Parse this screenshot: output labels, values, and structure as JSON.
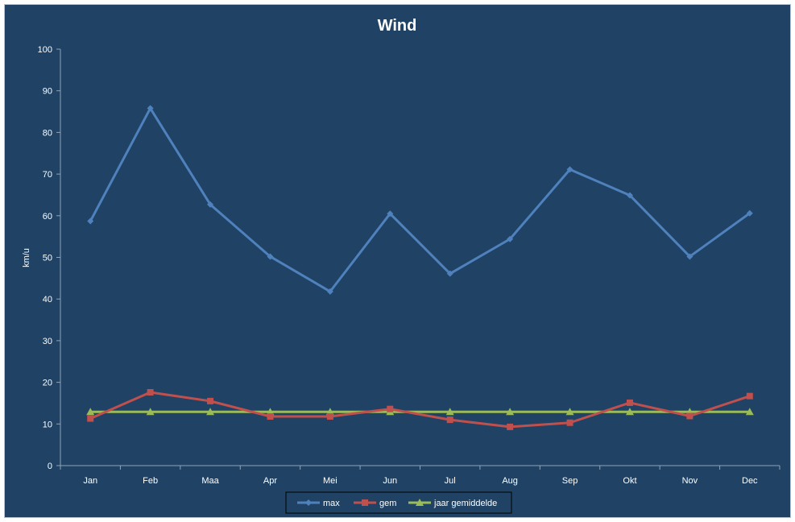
{
  "chart_data": {
    "type": "line",
    "title": "Wind",
    "xlabel": "",
    "ylabel": "km/u",
    "ylim": [
      0,
      100
    ],
    "yticks": [
      0,
      10,
      20,
      30,
      40,
      50,
      60,
      70,
      80,
      90,
      100
    ],
    "categories": [
      "Jan",
      "Feb",
      "Maa",
      "Apr",
      "Mei",
      "Jun",
      "Jul",
      "Aug",
      "Sep",
      "Okt",
      "Nov",
      "Dec"
    ],
    "grid": false,
    "legend_position": "bottom",
    "series": [
      {
        "name": "max",
        "color": "#4f81bd",
        "marker": "diamond",
        "values": [
          58.7,
          85.8,
          62.7,
          50.2,
          41.8,
          60.5,
          46.1,
          54.4,
          71.1,
          64.9,
          50.2,
          60.6
        ]
      },
      {
        "name": "gem",
        "color": "#c0504d",
        "marker": "square",
        "values": [
          11.3,
          17.6,
          15.5,
          11.8,
          11.8,
          13.6,
          11.0,
          9.3,
          10.3,
          15.1,
          11.9,
          16.7
        ]
      },
      {
        "name": "jaar gemiddelde",
        "color": "#9bbb59",
        "marker": "triangle",
        "values": [
          12.9,
          12.9,
          12.9,
          12.9,
          12.9,
          12.9,
          12.9,
          12.9,
          12.9,
          12.9,
          12.9,
          12.9
        ]
      }
    ]
  }
}
